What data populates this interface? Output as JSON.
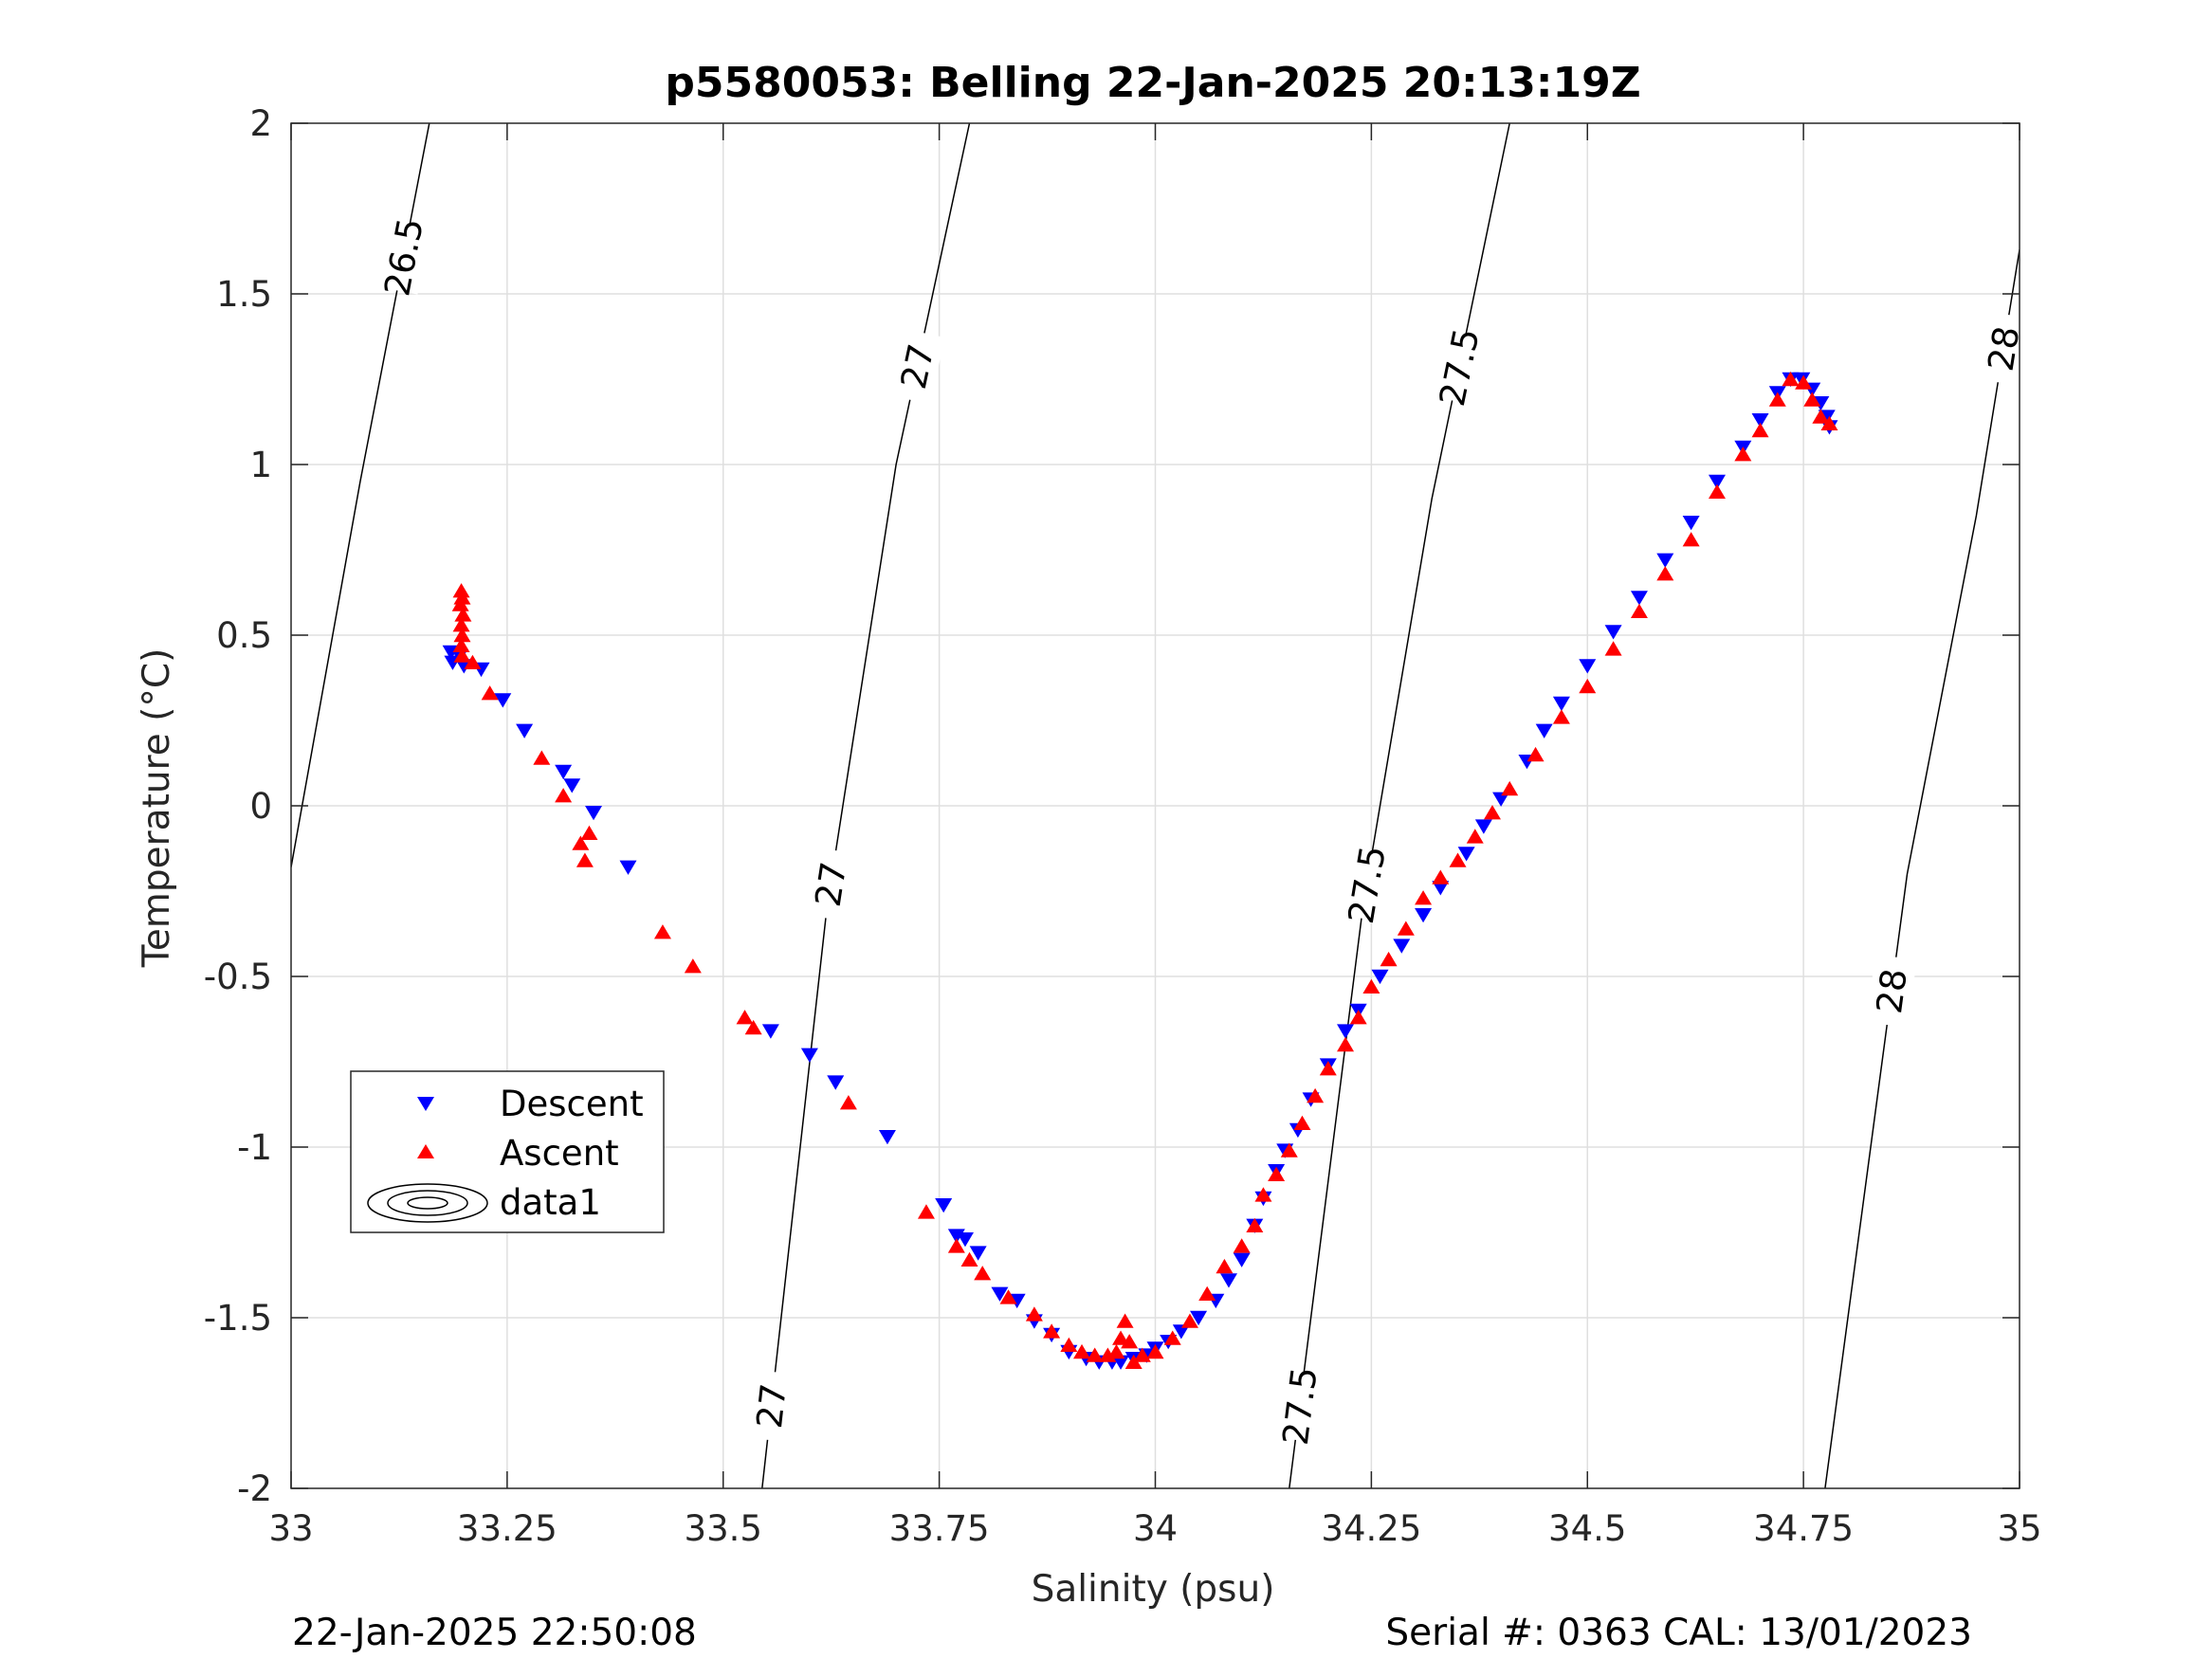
{
  "chart_data": {
    "type": "scatter",
    "title": "p5580053: Belling 22-Jan-2025 20:13:19Z",
    "xlabel": "Salinity (psu)",
    "ylabel": "Temperature (°C)",
    "xlim": [
      33,
      35
    ],
    "ylim": [
      -2,
      2
    ],
    "grid": true,
    "xticks": [
      33,
      33.25,
      33.5,
      33.75,
      34,
      34.25,
      34.5,
      34.75,
      35
    ],
    "xtick_labels": [
      "33",
      "33.25",
      "33.5",
      "33.75",
      "34",
      "34.25",
      "34.5",
      "34.75",
      "35"
    ],
    "yticks": [
      -2,
      -1.5,
      -1,
      -0.5,
      0,
      0.5,
      1,
      1.5,
      2
    ],
    "ytick_labels": [
      "-2",
      "-1.5",
      "-1",
      "-0.5",
      "0",
      "0.5",
      "1",
      "1.5",
      "2"
    ],
    "legend": {
      "placement": "lower-left",
      "entries": [
        "Descent",
        "Ascent",
        "data1"
      ]
    },
    "series": [
      {
        "name": "Descent",
        "marker": "triangle-down",
        "color": "#0000ff",
        "points": [
          [
            33.185,
            0.45
          ],
          [
            33.187,
            0.42
          ],
          [
            33.195,
            0.44
          ],
          [
            33.2,
            0.41
          ],
          [
            33.22,
            0.4
          ],
          [
            33.245,
            0.31
          ],
          [
            33.27,
            0.22
          ],
          [
            33.315,
            0.1
          ],
          [
            33.325,
            0.06
          ],
          [
            33.35,
            -0.02
          ],
          [
            33.39,
            -0.18
          ],
          [
            33.555,
            -0.66
          ],
          [
            33.6,
            -0.73
          ],
          [
            33.63,
            -0.81
          ],
          [
            33.69,
            -0.97
          ],
          [
            33.755,
            -1.17
          ],
          [
            33.77,
            -1.26
          ],
          [
            33.78,
            -1.27
          ],
          [
            33.795,
            -1.31
          ],
          [
            33.82,
            -1.43
          ],
          [
            33.84,
            -1.45
          ],
          [
            33.86,
            -1.51
          ],
          [
            33.88,
            -1.55
          ],
          [
            33.9,
            -1.6
          ],
          [
            33.92,
            -1.62
          ],
          [
            33.935,
            -1.63
          ],
          [
            33.95,
            -1.63
          ],
          [
            33.96,
            -1.63
          ],
          [
            33.975,
            -1.62
          ],
          [
            33.99,
            -1.61
          ],
          [
            34.0,
            -1.59
          ],
          [
            34.015,
            -1.57
          ],
          [
            34.03,
            -1.54
          ],
          [
            34.05,
            -1.5
          ],
          [
            34.07,
            -1.45
          ],
          [
            34.085,
            -1.39
          ],
          [
            34.1,
            -1.33
          ],
          [
            34.115,
            -1.23
          ],
          [
            34.125,
            -1.15
          ],
          [
            34.14,
            -1.07
          ],
          [
            34.15,
            -1.01
          ],
          [
            34.165,
            -0.95
          ],
          [
            34.18,
            -0.86
          ],
          [
            34.2,
            -0.76
          ],
          [
            34.22,
            -0.66
          ],
          [
            34.235,
            -0.6
          ],
          [
            34.26,
            -0.5
          ],
          [
            34.285,
            -0.41
          ],
          [
            34.31,
            -0.32
          ],
          [
            34.33,
            -0.24
          ],
          [
            34.36,
            -0.14
          ],
          [
            34.38,
            -0.06
          ],
          [
            34.4,
            0.02
          ],
          [
            34.43,
            0.13
          ],
          [
            34.45,
            0.22
          ],
          [
            34.47,
            0.3
          ],
          [
            34.5,
            0.41
          ],
          [
            34.53,
            0.51
          ],
          [
            34.56,
            0.61
          ],
          [
            34.59,
            0.72
          ],
          [
            34.62,
            0.83
          ],
          [
            34.65,
            0.95
          ],
          [
            34.68,
            1.05
          ],
          [
            34.7,
            1.13
          ],
          [
            34.72,
            1.21
          ],
          [
            34.735,
            1.25
          ],
          [
            34.748,
            1.25
          ],
          [
            34.76,
            1.22
          ],
          [
            34.77,
            1.18
          ],
          [
            34.777,
            1.14
          ],
          [
            34.78,
            1.11
          ]
        ]
      },
      {
        "name": "Ascent",
        "marker": "triangle-up",
        "color": "#ff0000",
        "points": [
          [
            33.197,
            0.63
          ],
          [
            33.198,
            0.61
          ],
          [
            33.196,
            0.59
          ],
          [
            33.199,
            0.56
          ],
          [
            33.197,
            0.53
          ],
          [
            33.198,
            0.5
          ],
          [
            33.197,
            0.47
          ],
          [
            33.198,
            0.44
          ],
          [
            33.21,
            0.42
          ],
          [
            33.23,
            0.33
          ],
          [
            33.29,
            0.14
          ],
          [
            33.315,
            0.03
          ],
          [
            33.335,
            -0.11
          ],
          [
            33.34,
            -0.16
          ],
          [
            33.345,
            -0.08
          ],
          [
            33.43,
            -0.37
          ],
          [
            33.465,
            -0.47
          ],
          [
            33.525,
            -0.62
          ],
          [
            33.535,
            -0.65
          ],
          [
            33.645,
            -0.87
          ],
          [
            33.735,
            -1.19
          ],
          [
            33.77,
            -1.29
          ],
          [
            33.785,
            -1.33
          ],
          [
            33.8,
            -1.37
          ],
          [
            33.83,
            -1.44
          ],
          [
            33.86,
            -1.49
          ],
          [
            33.88,
            -1.54
          ],
          [
            33.9,
            -1.58
          ],
          [
            33.915,
            -1.6
          ],
          [
            33.93,
            -1.61
          ],
          [
            33.945,
            -1.61
          ],
          [
            33.955,
            -1.6
          ],
          [
            33.96,
            -1.56
          ],
          [
            33.965,
            -1.51
          ],
          [
            33.97,
            -1.57
          ],
          [
            33.975,
            -1.63
          ],
          [
            33.985,
            -1.61
          ],
          [
            34.0,
            -1.6
          ],
          [
            34.02,
            -1.56
          ],
          [
            34.04,
            -1.51
          ],
          [
            34.06,
            -1.43
          ],
          [
            34.08,
            -1.35
          ],
          [
            34.1,
            -1.29
          ],
          [
            34.115,
            -1.23
          ],
          [
            34.125,
            -1.14
          ],
          [
            34.14,
            -1.08
          ],
          [
            34.155,
            -1.01
          ],
          [
            34.17,
            -0.93
          ],
          [
            34.185,
            -0.85
          ],
          [
            34.2,
            -0.77
          ],
          [
            34.22,
            -0.7
          ],
          [
            34.235,
            -0.62
          ],
          [
            34.25,
            -0.53
          ],
          [
            34.27,
            -0.45
          ],
          [
            34.29,
            -0.36
          ],
          [
            34.31,
            -0.27
          ],
          [
            34.33,
            -0.21
          ],
          [
            34.35,
            -0.16
          ],
          [
            34.37,
            -0.09
          ],
          [
            34.39,
            -0.02
          ],
          [
            34.41,
            0.05
          ],
          [
            34.44,
            0.15
          ],
          [
            34.47,
            0.26
          ],
          [
            34.5,
            0.35
          ],
          [
            34.53,
            0.46
          ],
          [
            34.56,
            0.57
          ],
          [
            34.59,
            0.68
          ],
          [
            34.62,
            0.78
          ],
          [
            34.65,
            0.92
          ],
          [
            34.68,
            1.03
          ],
          [
            34.7,
            1.1
          ],
          [
            34.72,
            1.19
          ],
          [
            34.735,
            1.25
          ],
          [
            34.75,
            1.24
          ],
          [
            34.76,
            1.19
          ],
          [
            34.77,
            1.14
          ],
          [
            34.78,
            1.12
          ]
        ]
      }
    ],
    "contour_labels": {
      "lines": [
        {
          "label": "26.5",
          "points": [
            [
              33.0,
              -0.18
            ],
            [
              33.08,
              0.95
            ],
            [
              33.16,
              2.0
            ]
          ]
        },
        {
          "label": "27",
          "points": [
            [
              33.545,
              -2.0
            ],
            [
              33.62,
              -0.3
            ],
            [
              33.7,
              1.0
            ],
            [
              33.785,
              2.0
            ]
          ]
        },
        {
          "label": "27.5",
          "points": [
            [
              34.155,
              -2.0
            ],
            [
              34.24,
              -0.3
            ],
            [
              34.32,
              0.9
            ],
            [
              34.41,
              2.0
            ]
          ]
        },
        {
          "label": "28",
          "points": [
            [
              34.775,
              -2.0
            ],
            [
              34.87,
              -0.2
            ],
            [
              34.95,
              0.85
            ],
            [
              35.0,
              1.63
            ]
          ]
        }
      ]
    },
    "footer_left": "22-Jan-2025 22:50:08",
    "footer_right": "Serial #: 0363  CAL: 13/01/2023"
  }
}
